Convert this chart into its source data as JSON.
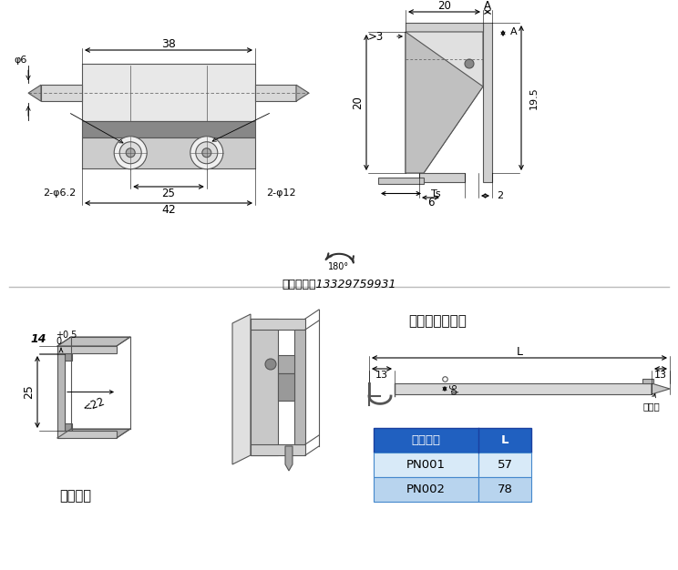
{
  "bg_color": "#ffffff",
  "watermark_text": "店主手机：13329759931",
  "top_left_dims": {
    "d38": "38",
    "phi6": "φ6",
    "d25": "25",
    "d42": "42",
    "d2phi62": "2-φ6.2",
    "d2phi12": "2-φ12"
  },
  "top_right_dims": {
    "d20": "20",
    "dA": "A",
    "dgt3": ">3",
    "d20v": "20",
    "d19p5": "19.5",
    "d2": "2",
    "dTs": "Ts",
    "d6": "6"
  },
  "bottom_left": {
    "label": "门板开孔",
    "d14": "14",
    "tol_plus": "+0.5",
    "tol_minus": "0",
    "d25": "25",
    "d22": "<22"
  },
  "bottom_right": {
    "title": "尼龙销（选配）",
    "dL": "L",
    "d13": "13",
    "dphi6": "φ6",
    "label_clip": "防脱扣",
    "table_header": [
      "零件编号",
      "L"
    ],
    "table_rows": [
      [
        "PN001",
        "57"
      ],
      [
        "PN002",
        "78"
      ]
    ],
    "header_bg": "#2060c0",
    "header_fg": "#ffffff",
    "row1_bg": "#d8eaf8",
    "row2_bg": "#b8d4ee",
    "table_fg": "#000000"
  }
}
